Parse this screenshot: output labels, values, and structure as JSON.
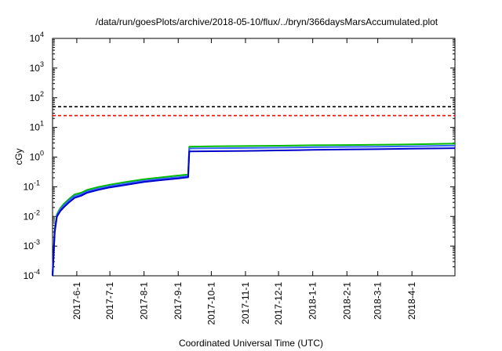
{
  "chart_data": {
    "type": "line",
    "title": "/data/run/goesPlots/archive/2018-05-10/flux/../bryn/366daysMarsAccumulated.plot",
    "xlabel": "Coordinated Universal Time (UTC)",
    "ylabel": "cGy",
    "y_scale": "log",
    "ylim": [
      0.0001,
      10000
    ],
    "xlim": [
      "2017-05-10",
      "2018-05-10"
    ],
    "y_tick_exponents": [
      "-4",
      "-3",
      "-2",
      "-1",
      "0",
      "1",
      "2",
      "3",
      "4"
    ],
    "y_tick_labels": [
      "10",
      "10",
      "10",
      "10",
      "10",
      "10",
      "10",
      "10",
      "10"
    ],
    "x_tick_labels": [
      "2017-6-1",
      "2017-7-1",
      "2017-8-1",
      "2017-9-1",
      "2017-10-1",
      "2017-11-1",
      "2017-12-1",
      "2018-1-1",
      "2018-2-1",
      "2018-3-1",
      "2018-4-1"
    ],
    "x_ticks": [
      "2017-06-01",
      "2017-07-01",
      "2017-08-01",
      "2017-09-01",
      "2017-10-01",
      "2017-11-01",
      "2017-12-01",
      "2018-01-01",
      "2018-02-01",
      "2018-03-01",
      "2018-04-01"
    ],
    "grid": false,
    "series": [
      {
        "color": "#00bb00",
        "x": [
          "2017-05-10",
          "2017-05-12",
          "2017-05-14",
          "2017-05-17",
          "2017-05-20",
          "2017-05-25",
          "2017-05-30",
          "2017-06-05",
          "2017-06-10",
          "2017-06-20",
          "2017-07-01",
          "2017-07-15",
          "2017-08-01",
          "2017-08-15",
          "2017-09-01",
          "2017-09-10",
          "2017-09-11",
          "2017-10-01",
          "2017-11-01",
          "2017-12-01",
          "2018-01-01",
          "2018-02-01",
          "2018-03-01",
          "2018-04-01",
          "2018-05-10"
        ],
        "values": [
          0.0001,
          0.004,
          0.012,
          0.019,
          0.026,
          0.039,
          0.055,
          0.063,
          0.078,
          0.097,
          0.118,
          0.145,
          0.18,
          0.205,
          0.24,
          0.26,
          2.25,
          2.3,
          2.35,
          2.42,
          2.5,
          2.55,
          2.6,
          2.68,
          2.85
        ]
      },
      {
        "color": "#3366ff",
        "x": [
          "2017-05-10",
          "2017-05-12",
          "2017-05-14",
          "2017-05-17",
          "2017-05-20",
          "2017-05-25",
          "2017-05-30",
          "2017-06-05",
          "2017-06-10",
          "2017-06-20",
          "2017-07-01",
          "2017-07-15",
          "2017-08-01",
          "2017-08-15",
          "2017-09-01",
          "2017-09-10",
          "2017-09-11",
          "2017-10-01",
          "2017-11-01",
          "2017-12-01",
          "2018-01-01",
          "2018-02-01",
          "2018-03-01",
          "2018-04-01",
          "2018-05-10"
        ],
        "values": [
          0.0001,
          0.0035,
          0.011,
          0.017,
          0.023,
          0.035,
          0.048,
          0.056,
          0.069,
          0.086,
          0.105,
          0.128,
          0.16,
          0.182,
          0.21,
          0.23,
          1.95,
          1.98,
          2.02,
          2.08,
          2.15,
          2.2,
          2.25,
          2.32,
          2.45
        ]
      },
      {
        "color": "#0000cc",
        "x": [
          "2017-05-10",
          "2017-05-12",
          "2017-05-14",
          "2017-05-17",
          "2017-05-20",
          "2017-05-25",
          "2017-05-30",
          "2017-06-05",
          "2017-06-10",
          "2017-06-20",
          "2017-07-01",
          "2017-07-15",
          "2017-08-01",
          "2017-08-15",
          "2017-09-01",
          "2017-09-10",
          "2017-09-11",
          "2017-10-01",
          "2017-11-01",
          "2017-12-01",
          "2018-01-01",
          "2018-02-01",
          "2018-03-01",
          "2018-04-01",
          "2018-05-10"
        ],
        "values": [
          0.0001,
          0.003,
          0.01,
          0.015,
          0.02,
          0.03,
          0.042,
          0.05,
          0.062,
          0.078,
          0.095,
          0.115,
          0.145,
          0.165,
          0.19,
          0.21,
          1.55,
          1.58,
          1.62,
          1.68,
          1.75,
          1.8,
          1.85,
          1.92,
          2.0
        ]
      },
      {
        "color": "#000000",
        "style": "dashed",
        "x": [
          "2017-05-10",
          "2018-05-10"
        ],
        "values": [
          50,
          50
        ]
      },
      {
        "color": "#ff0000",
        "style": "dashed",
        "x": [
          "2017-05-10",
          "2018-05-10"
        ],
        "values": [
          25,
          25
        ]
      }
    ]
  }
}
